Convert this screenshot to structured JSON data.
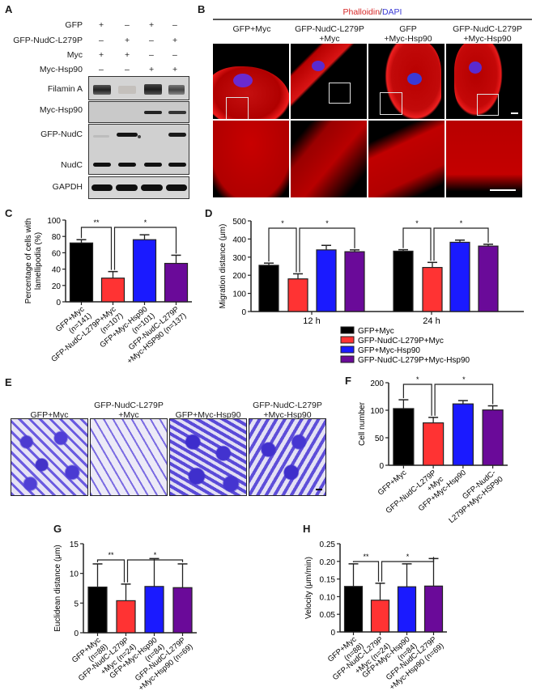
{
  "panels": {
    "A": {
      "letter": "A",
      "conditions": [
        {
          "label": "GFP",
          "signs": [
            "+",
            "–",
            "+",
            "–"
          ]
        },
        {
          "label": "GFP-NudC-L279P",
          "signs": [
            "–",
            "+",
            "–",
            "+"
          ]
        },
        {
          "label": "Myc",
          "signs": [
            "+",
            "+",
            "–",
            "–"
          ]
        },
        {
          "label": "Myc-Hsp90",
          "signs": [
            "–",
            "–",
            "+",
            "+"
          ]
        }
      ],
      "blots": [
        "Filamin A",
        "Myc-Hsp90",
        "GFP-NudC",
        "NudC",
        "GAPDH"
      ]
    },
    "B": {
      "letter": "B",
      "stain_phalloidin": "Phalloidin",
      "stain_sep": "/",
      "stain_dapi": "DAPI",
      "stain_phalloidin_color": "#d62828",
      "stain_dapi_color": "#3b3bd6",
      "columns": [
        {
          "line1": "GFP+Myc",
          "line2": ""
        },
        {
          "line1": "GFP-NudC-L279P",
          "line2": "+Myc"
        },
        {
          "line1": "GFP",
          "line2": "+Myc-Hsp90"
        },
        {
          "line1": "GFP-NudC-L279P",
          "line2": "+Myc-Hsp90"
        }
      ]
    },
    "C": {
      "letter": "C"
    },
    "D": {
      "letter": "D"
    },
    "E": {
      "letter": "E",
      "columns": [
        {
          "line1": "GFP+Myc",
          "line2": ""
        },
        {
          "line1": "GFP-NudC-L279P",
          "line2": "+Myc"
        },
        {
          "line1": "GFP+Myc-Hsp90",
          "line2": ""
        },
        {
          "line1": "GFP-NudC-L279P",
          "line2": "+Myc-Hsp90"
        }
      ]
    },
    "F": {
      "letter": "F"
    },
    "G": {
      "letter": "G"
    },
    "H": {
      "letter": "H"
    }
  },
  "colors": {
    "black": "#000000",
    "red": "#ff3333",
    "blue": "#1a1aff",
    "purple": "#6a0a99"
  },
  "chart_data": [
    {
      "id": "C",
      "type": "bar",
      "title": "",
      "xlabel": "",
      "ylabel": "Percentage of cells with lamellipodia (%)",
      "ylabel_lines": [
        "Percentage of cells with",
        "lamellipodia (%)"
      ],
      "ylim": [
        0,
        100
      ],
      "yticks": [
        0,
        20,
        40,
        60,
        80,
        100
      ],
      "categories": [
        "GFP+Myc (n=141)",
        "GFP-NudC-L279P+Myc (n=107)",
        "GFP+Myc-Hsp90 (n=101)",
        "GFP-NudC-L279P +Myc-HSP90 (n=137)"
      ],
      "category_lines": [
        [
          "GFP+Myc",
          "(n=141)"
        ],
        [
          "GFP-NudC-L279P+Myc",
          "(n=107)"
        ],
        [
          "GFP+Myc-Hsp90",
          "(n=101)"
        ],
        [
          "GFP-NudC-L279P",
          "+Myc-HSP90 (n=137)"
        ]
      ],
      "values": [
        72,
        29,
        76,
        47
      ],
      "errors": [
        4,
        8,
        6,
        10
      ],
      "significance": [
        {
          "from": 0,
          "to": 1,
          "label": "**"
        },
        {
          "from": 1,
          "to": 3,
          "label": "*"
        }
      ]
    },
    {
      "id": "D",
      "type": "bar",
      "title": "",
      "xlabel": "",
      "ylabel": "Migration distance (μm)",
      "ylim": [
        0,
        500
      ],
      "yticks": [
        0,
        100,
        200,
        300,
        400,
        500
      ],
      "categories": [
        "12 h",
        "24 h"
      ],
      "series": [
        {
          "name": "GFP+Myc",
          "values": [
            255,
            333
          ],
          "errors": [
            12,
            8
          ]
        },
        {
          "name": "GFP-NudC-L279P+Myc",
          "values": [
            180,
            243
          ],
          "errors": [
            28,
            28
          ]
        },
        {
          "name": "GFP+Myc-Hsp90",
          "values": [
            340,
            382
          ],
          "errors": [
            25,
            12
          ]
        },
        {
          "name": "GFP-NudC-L279P+Myc-Hsp90",
          "values": [
            330,
            361
          ],
          "errors": [
            10,
            10
          ]
        }
      ],
      "legend_position": "bottom",
      "significance": [
        {
          "group": 0,
          "from": 0,
          "to": 1,
          "label": "*"
        },
        {
          "group": 0,
          "from": 1,
          "to": 3,
          "label": "*"
        },
        {
          "group": 1,
          "from": 0,
          "to": 1,
          "label": "*"
        },
        {
          "group": 1,
          "from": 1,
          "to": 3,
          "label": "*"
        }
      ]
    },
    {
      "id": "F",
      "type": "bar",
      "title": "",
      "xlabel": "",
      "ylabel": "Cell number",
      "ylim": [
        0,
        200
      ],
      "yticks": [
        0,
        50,
        100,
        200
      ],
      "categories": [
        "GFP+Myc",
        "GFP-NudC-L279P +Myc",
        "GFP+Myc-Hsp90",
        "GFP-NudC- L279P+Myc-HSP90"
      ],
      "category_lines": [
        [
          "GFP+Myc"
        ],
        [
          "GFP-NudC-L279P",
          "+Myc"
        ],
        [
          "GFP+Myc-Hsp90"
        ],
        [
          "GFP-NudC-",
          "L279P+Myc-HSP90"
        ]
      ],
      "values": [
        106,
        77,
        123,
        101
      ],
      "errors": [
        32,
        10,
        12,
        15
      ],
      "significance": [
        {
          "from": 0,
          "to": 1,
          "label": "*"
        },
        {
          "from": 1,
          "to": 3,
          "label": "*"
        }
      ]
    },
    {
      "id": "G",
      "type": "bar",
      "title": "",
      "xlabel": "",
      "ylabel": "Euclidean distance (μm)",
      "ylim": [
        0,
        15
      ],
      "yticks": [
        0,
        5,
        10,
        15
      ],
      "categories": [
        "GFP+Myc (n=88)",
        "GFP-NudC-L279P +Myc (n=24)",
        "GFP+Myc-Hsp90 (n=84)",
        "GFP-NudC-L279P +Myc-Hsp90 (n=69)"
      ],
      "category_lines": [
        [
          "GFP+Myc",
          "(n=88)"
        ],
        [
          "GFP-NudC-L279P",
          "+Myc (n=24)"
        ],
        [
          "GFP+Myc-Hsp90",
          "(n=84)"
        ],
        [
          "GFP-NudC-L279P",
          "+Myc-Hsp90 (n=69)"
        ]
      ],
      "values": [
        7.7,
        5.4,
        7.8,
        7.6
      ],
      "errors": [
        3.9,
        2.8,
        4.7,
        4.0
      ],
      "significance": [
        {
          "from": 0,
          "to": 1,
          "label": "**"
        },
        {
          "from": 1,
          "to": 3,
          "label": "*"
        }
      ]
    },
    {
      "id": "H",
      "type": "bar",
      "title": "",
      "xlabel": "",
      "ylabel": "Velocity (μm/min)",
      "ylim": [
        0,
        0.25
      ],
      "yticks": [
        0,
        0.05,
        0.1,
        0.15,
        0.2,
        0.25
      ],
      "ytick_labels": [
        "0",
        "0.05",
        "0.10",
        "0.15",
        "0.20",
        "0.25"
      ],
      "categories": [
        "GFP+Myc (n=88)",
        "GFP-NudC-L279P +Myc (n=24)",
        "GFP+Myc-Hsp90 (n=84)",
        "GFP-NudC-L279P +Myc-Hsp90 (n=69)"
      ],
      "category_lines": [
        [
          "GFP+Myc",
          "(n=88)"
        ],
        [
          "GFP-NudC-L279P",
          "+Myc (n=24)"
        ],
        [
          "GFP+Myc-Hsp90",
          "(n=84)"
        ],
        [
          "GFP-NudC-L279P",
          "+Myc-Hsp90 (n=69)"
        ]
      ],
      "values": [
        0.129,
        0.09,
        0.128,
        0.13
      ],
      "errors": [
        0.064,
        0.048,
        0.065,
        0.078
      ],
      "significance": [
        {
          "from": 0,
          "to": 1,
          "label": "**"
        },
        {
          "from": 1,
          "to": 3,
          "label": "*"
        }
      ]
    }
  ]
}
